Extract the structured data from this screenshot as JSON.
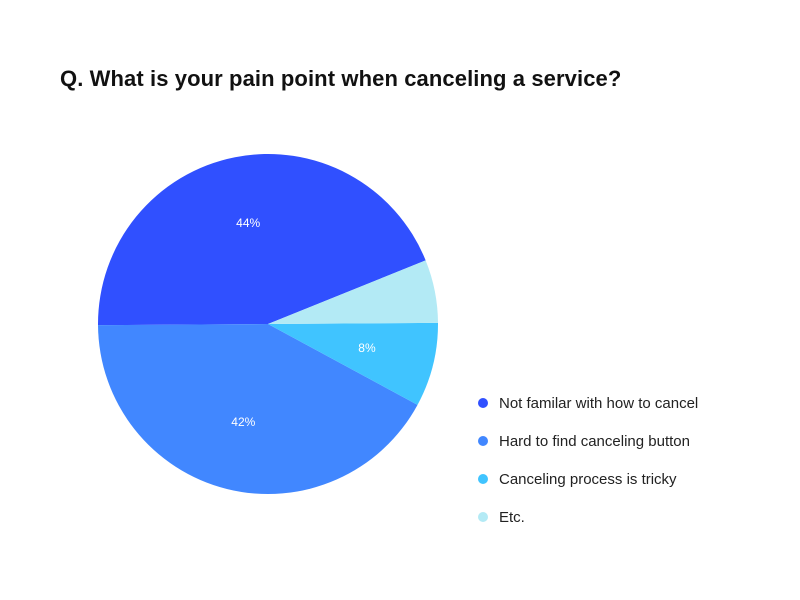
{
  "chart_data": {
    "type": "pie",
    "title": "Q. What is your pain point when canceling a service?",
    "slices": [
      {
        "name": "Not familar with how to cancel",
        "value": 44,
        "label": "44%",
        "color": "#3050FF"
      },
      {
        "name": "Hard to find canceling button",
        "value": 42,
        "label": "42%",
        "color": "#4187FF"
      },
      {
        "name": "Canceling process is tricky",
        "value": 8,
        "label": "8%",
        "color": "#40C4FF"
      },
      {
        "name": "Etc.",
        "value": 6,
        "label": "",
        "color": "#B3EAF5"
      }
    ],
    "start_angle_deg": -22,
    "direction": "counterclockwise",
    "legend_position": "bottom-right"
  }
}
